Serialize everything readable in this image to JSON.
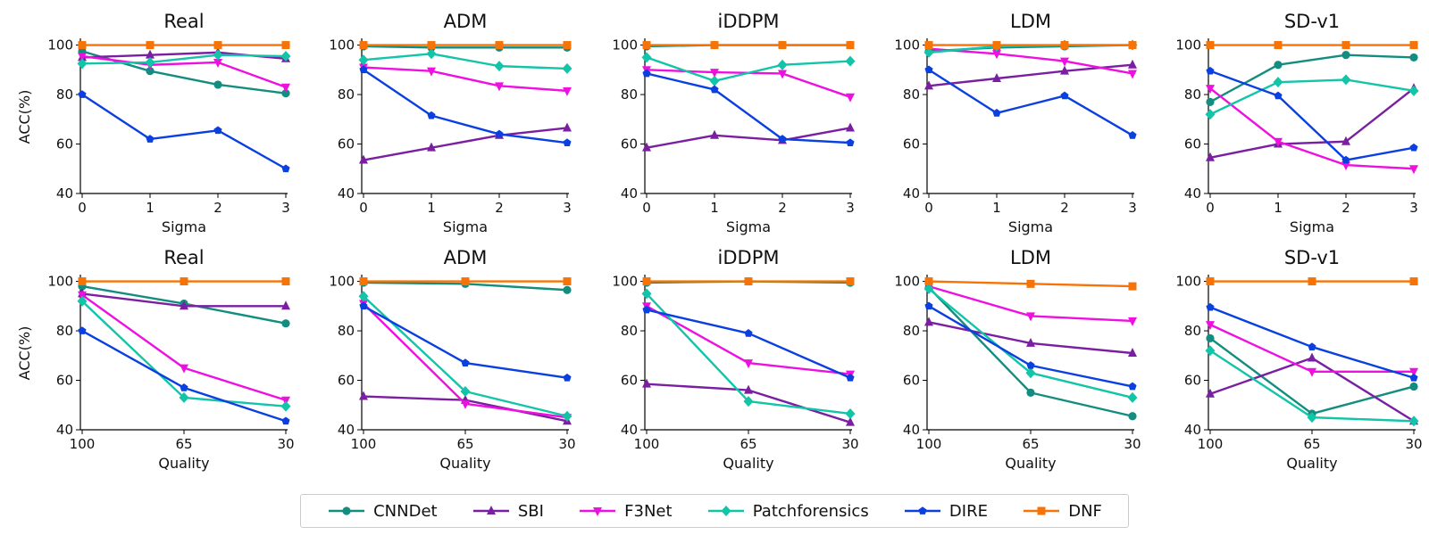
{
  "colors": {
    "CNNDet": "#138d7f",
    "SBI": "#7b1fa2",
    "F3Net": "#ee10e0",
    "Patchforensics": "#12c4a8",
    "DIRE": "#0a3fe0",
    "DNF": "#f57307"
  },
  "markers": {
    "CNNDet": "circle",
    "SBI": "triangle-up",
    "F3Net": "triangle-down",
    "Patchforensics": "diamond",
    "DIRE": "pentagon",
    "DNF": "square"
  },
  "legend": [
    "CNNDet",
    "SBI",
    "F3Net",
    "Patchforensics",
    "DIRE",
    "DNF"
  ],
  "chart_data": [
    {
      "type": "line",
      "row": 0,
      "title": "Real",
      "xlabel": "Sigma",
      "ylabel": "ACC(%)",
      "categories": [
        "0",
        "1",
        "2",
        "3"
      ],
      "ylim": [
        40,
        102
      ],
      "yticks": [
        "40",
        "60",
        "80",
        "100"
      ],
      "series": [
        {
          "name": "CNNDet",
          "values": [
            97.5,
            89.5,
            84,
            80.5
          ]
        },
        {
          "name": "SBI",
          "values": [
            95,
            96,
            97,
            94.5
          ]
        },
        {
          "name": "F3Net",
          "values": [
            95.5,
            92,
            93,
            83
          ]
        },
        {
          "name": "Patchforensics",
          "values": [
            92.5,
            93,
            96,
            95.5
          ]
        },
        {
          "name": "DIRE",
          "values": [
            80,
            62,
            65.5,
            50
          ]
        },
        {
          "name": "DNF",
          "values": [
            100,
            100,
            100,
            100
          ]
        }
      ]
    },
    {
      "type": "line",
      "row": 0,
      "title": "ADM",
      "xlabel": "Sigma",
      "ylabel": "",
      "categories": [
        "0",
        "1",
        "2",
        "3"
      ],
      "ylim": [
        40,
        102
      ],
      "yticks": [
        "40",
        "60",
        "80",
        "100"
      ],
      "series": [
        {
          "name": "CNNDet",
          "values": [
            99.5,
            99,
            99,
            99
          ]
        },
        {
          "name": "SBI",
          "values": [
            53.5,
            58.5,
            63.5,
            66.5
          ]
        },
        {
          "name": "F3Net",
          "values": [
            91,
            89.5,
            83.5,
            81.5
          ]
        },
        {
          "name": "Patchforensics",
          "values": [
            94,
            96.5,
            91.5,
            90.5
          ]
        },
        {
          "name": "DIRE",
          "values": [
            90,
            71.5,
            64,
            60.5
          ]
        },
        {
          "name": "DNF",
          "values": [
            100,
            100,
            100,
            100
          ]
        }
      ]
    },
    {
      "type": "line",
      "row": 0,
      "title": "iDDPM",
      "xlabel": "Sigma",
      "ylabel": "",
      "categories": [
        "0",
        "1",
        "2",
        "3"
      ],
      "ylim": [
        40,
        102
      ],
      "yticks": [
        "40",
        "60",
        "80",
        "100"
      ],
      "series": [
        {
          "name": "CNNDet",
          "values": [
            99.5,
            100,
            100,
            100
          ]
        },
        {
          "name": "SBI",
          "values": [
            58.5,
            63.5,
            61.5,
            66.5
          ]
        },
        {
          "name": "F3Net",
          "values": [
            90,
            89,
            88.5,
            79
          ]
        },
        {
          "name": "Patchforensics",
          "values": [
            95,
            85.5,
            92,
            93.5
          ]
        },
        {
          "name": "DIRE",
          "values": [
            88.5,
            82,
            62,
            60.5
          ]
        },
        {
          "name": "DNF",
          "values": [
            100,
            100,
            100,
            100
          ]
        }
      ]
    },
    {
      "type": "line",
      "row": 0,
      "title": "LDM",
      "xlabel": "Sigma",
      "ylabel": "",
      "categories": [
        "0",
        "1",
        "2",
        "3"
      ],
      "ylim": [
        40,
        102
      ],
      "yticks": [
        "40",
        "60",
        "80",
        "100"
      ],
      "series": [
        {
          "name": "CNNDet",
          "values": [
            97.5,
            99,
            99.5,
            100
          ]
        },
        {
          "name": "SBI",
          "values": [
            83.5,
            86.5,
            89.5,
            92
          ]
        },
        {
          "name": "F3Net",
          "values": [
            98.5,
            96.5,
            93.5,
            88.5
          ]
        },
        {
          "name": "Patchforensics",
          "values": [
            97,
            99.5,
            100,
            100
          ]
        },
        {
          "name": "DIRE",
          "values": [
            90,
            72.5,
            79.5,
            63.5
          ]
        },
        {
          "name": "DNF",
          "values": [
            100,
            100,
            100,
            100
          ]
        }
      ]
    },
    {
      "type": "line",
      "row": 0,
      "title": "SD-v1",
      "xlabel": "Sigma",
      "ylabel": "",
      "categories": [
        "0",
        "1",
        "2",
        "3"
      ],
      "ylim": [
        40,
        102
      ],
      "yticks": [
        "40",
        "60",
        "80",
        "100"
      ],
      "series": [
        {
          "name": "CNNDet",
          "values": [
            77,
            92,
            96,
            95
          ]
        },
        {
          "name": "SBI",
          "values": [
            54.5,
            60,
            61,
            82.5
          ]
        },
        {
          "name": "F3Net",
          "values": [
            82.5,
            61,
            51.5,
            50
          ]
        },
        {
          "name": "Patchforensics",
          "values": [
            72,
            85,
            86,
            81.5
          ]
        },
        {
          "name": "DIRE",
          "values": [
            89.5,
            79.5,
            53.5,
            58.5
          ]
        },
        {
          "name": "DNF",
          "values": [
            100,
            100,
            100,
            100
          ]
        }
      ]
    },
    {
      "type": "line",
      "row": 1,
      "title": "Real",
      "xlabel": "Quality",
      "ylabel": "ACC(%)",
      "categories": [
        "100",
        "65",
        "30"
      ],
      "ylim": [
        40,
        102
      ],
      "yticks": [
        "40",
        "60",
        "80",
        "100"
      ],
      "series": [
        {
          "name": "CNNDet",
          "values": [
            98,
            91,
            83
          ]
        },
        {
          "name": "SBI",
          "values": [
            95,
            90,
            90
          ]
        },
        {
          "name": "F3Net",
          "values": [
            94.5,
            65,
            52
          ]
        },
        {
          "name": "Patchforensics",
          "values": [
            92,
            53,
            49.5
          ]
        },
        {
          "name": "DIRE",
          "values": [
            80,
            57,
            43.5
          ]
        },
        {
          "name": "DNF",
          "values": [
            100,
            100,
            100
          ]
        }
      ]
    },
    {
      "type": "line",
      "row": 1,
      "title": "ADM",
      "xlabel": "Quality",
      "ylabel": "",
      "categories": [
        "100",
        "65",
        "30"
      ],
      "ylim": [
        40,
        102
      ],
      "yticks": [
        "40",
        "60",
        "80",
        "100"
      ],
      "series": [
        {
          "name": "CNNDet",
          "values": [
            99.5,
            99,
            96.5
          ]
        },
        {
          "name": "SBI",
          "values": [
            53.5,
            52,
            43.5
          ]
        },
        {
          "name": "F3Net",
          "values": [
            91,
            50.5,
            45
          ]
        },
        {
          "name": "Patchforensics",
          "values": [
            94,
            55.5,
            45.5
          ]
        },
        {
          "name": "DIRE",
          "values": [
            90,
            67,
            61
          ]
        },
        {
          "name": "DNF",
          "values": [
            100,
            100,
            100
          ]
        }
      ]
    },
    {
      "type": "line",
      "row": 1,
      "title": "iDDPM",
      "xlabel": "Quality",
      "ylabel": "",
      "categories": [
        "100",
        "65",
        "30"
      ],
      "ylim": [
        40,
        102
      ],
      "yticks": [
        "40",
        "60",
        "80",
        "100"
      ],
      "series": [
        {
          "name": "CNNDet",
          "values": [
            99.5,
            100,
            99.5
          ]
        },
        {
          "name": "SBI",
          "values": [
            58.5,
            56,
            43
          ]
        },
        {
          "name": "F3Net",
          "values": [
            90,
            67,
            62.5
          ]
        },
        {
          "name": "Patchforensics",
          "values": [
            95,
            51.5,
            46.5
          ]
        },
        {
          "name": "DIRE",
          "values": [
            88.5,
            79,
            61
          ]
        },
        {
          "name": "DNF",
          "values": [
            100,
            100,
            100
          ]
        }
      ]
    },
    {
      "type": "line",
      "row": 1,
      "title": "LDM",
      "xlabel": "Quality",
      "ylabel": "",
      "categories": [
        "100",
        "65",
        "30"
      ],
      "ylim": [
        40,
        102
      ],
      "yticks": [
        "40",
        "60",
        "80",
        "100"
      ],
      "series": [
        {
          "name": "CNNDet",
          "values": [
            97.5,
            55,
            45.5
          ]
        },
        {
          "name": "SBI",
          "values": [
            83.5,
            75,
            71
          ]
        },
        {
          "name": "F3Net",
          "values": [
            98,
            86,
            84
          ]
        },
        {
          "name": "Patchforensics",
          "values": [
            97,
            63,
            53
          ]
        },
        {
          "name": "DIRE",
          "values": [
            90,
            66,
            57.5
          ]
        },
        {
          "name": "DNF",
          "values": [
            100,
            99,
            98
          ]
        }
      ]
    },
    {
      "type": "line",
      "row": 1,
      "title": "SD-v1",
      "xlabel": "Quality",
      "ylabel": "",
      "categories": [
        "100",
        "65",
        "30"
      ],
      "ylim": [
        40,
        102
      ],
      "yticks": [
        "40",
        "60",
        "80",
        "100"
      ],
      "series": [
        {
          "name": "CNNDet",
          "values": [
            77,
            46.5,
            57.5
          ]
        },
        {
          "name": "SBI",
          "values": [
            54.5,
            69,
            43.5
          ]
        },
        {
          "name": "F3Net",
          "values": [
            82.5,
            63.5,
            63.5
          ]
        },
        {
          "name": "Patchforensics",
          "values": [
            72,
            45,
            43.5
          ]
        },
        {
          "name": "DIRE",
          "values": [
            89.5,
            73.5,
            61
          ]
        },
        {
          "name": "DNF",
          "values": [
            100,
            100,
            100
          ]
        }
      ]
    }
  ]
}
